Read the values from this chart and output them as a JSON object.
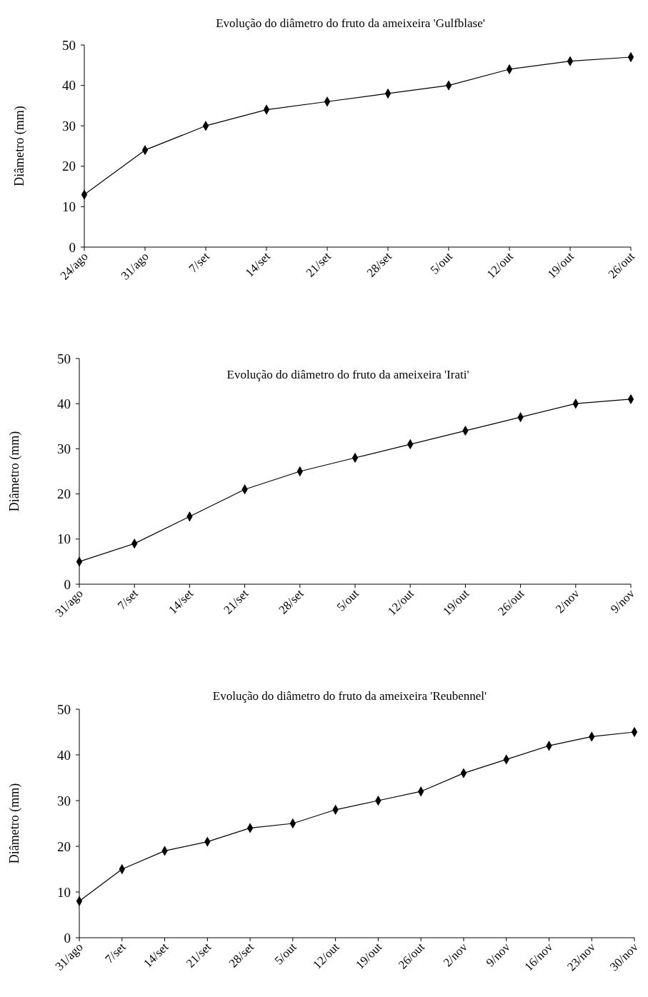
{
  "chart_data": [
    {
      "type": "line",
      "title": "Evolução do diâmetro do fruto da ameixeira 'Gulfblase'",
      "ylabel": "Diâmetro (mm)",
      "categories": [
        "24/ago",
        "31/ago",
        "7/set",
        "14/set",
        "21/set",
        "28/set",
        "5/out",
        "12/out",
        "19/out",
        "26/out"
      ],
      "values": [
        13,
        24,
        30,
        34,
        36,
        38,
        40,
        44,
        46,
        47
      ],
      "color": "#000000",
      "marker": "diamond",
      "ylim": [
        0,
        50
      ],
      "yticks": [
        0,
        10,
        20,
        30,
        40,
        50
      ]
    },
    {
      "type": "line",
      "title": "Evolução do diâmetro do fruto da ameixeira 'Irati'",
      "ylabel": "Diâmetro (mm)",
      "categories": [
        "31/ago",
        "7/set",
        "14/set",
        "21/set",
        "28/set",
        "5/out",
        "12/out",
        "19/out",
        "26/out",
        "2/nov",
        "9/nov"
      ],
      "values": [
        5,
        9,
        15,
        21,
        25,
        28,
        31,
        34,
        37,
        40,
        41
      ],
      "color": "#000000",
      "marker": "diamond",
      "ylim": [
        0,
        50
      ],
      "yticks": [
        0,
        10,
        20,
        30,
        40,
        50
      ]
    },
    {
      "type": "line",
      "title": "Evolução do diâmetro do fruto da ameixeira 'Reubennel'",
      "ylabel": "Diâmetro (mm)",
      "categories": [
        "31/ago",
        "7/set",
        "14/set",
        "21/set",
        "28/set",
        "5/out",
        "12/out",
        "19/out",
        "26/out",
        "2/nov",
        "9/nov",
        "16/nov",
        "23/nov",
        "30/nov"
      ],
      "values": [
        8,
        15,
        19,
        21,
        24,
        25,
        28,
        30,
        32,
        36,
        39,
        42,
        44,
        45
      ],
      "color": "#000000",
      "marker": "diamond",
      "ylim": [
        0,
        50
      ],
      "yticks": [
        0,
        10,
        20,
        30,
        40,
        50
      ]
    }
  ]
}
